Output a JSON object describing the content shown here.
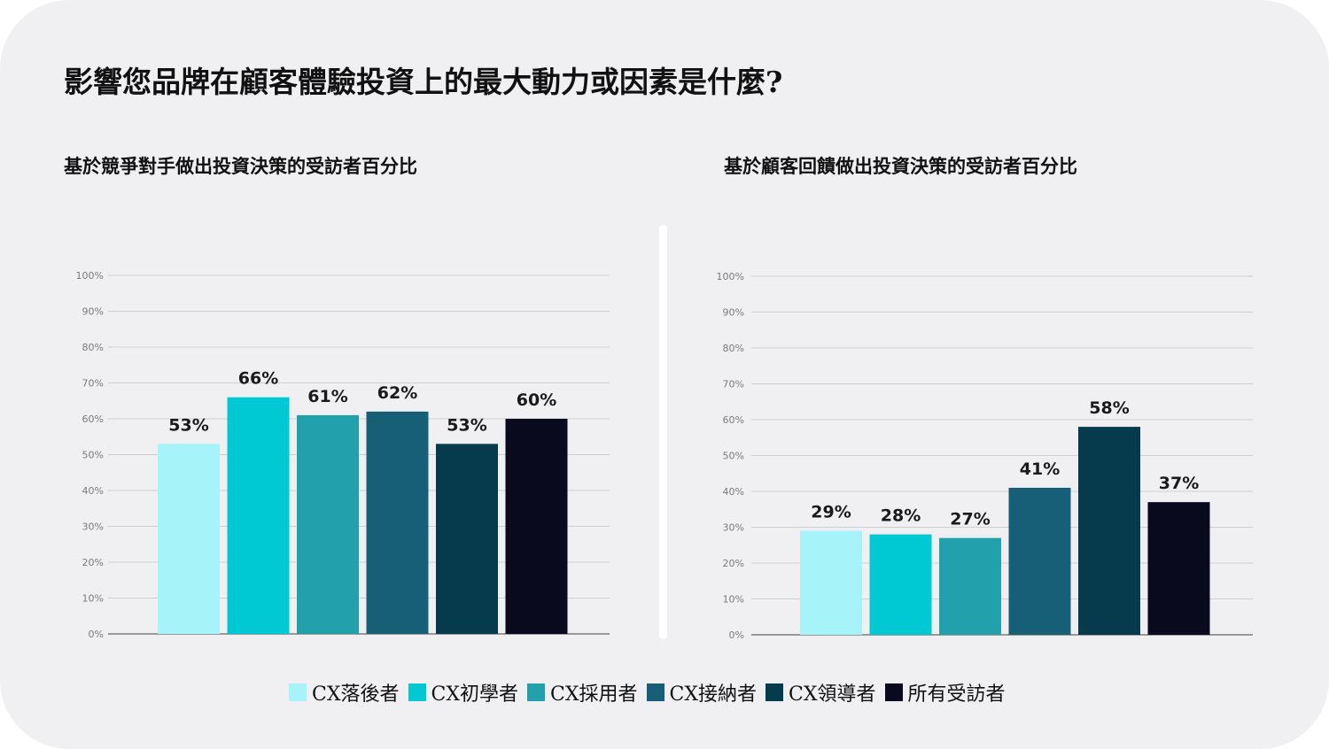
{
  "title": "影響您品牌在顧客體驗投資上的最大動力或因素是什麼?",
  "chart_data": [
    {
      "type": "bar",
      "title": "基於競爭對手做出投資決策的受訪者百分比",
      "categories": [
        "CX落後者",
        "CX初學者",
        "CX採用者",
        "CX接納者",
        "CX領導者",
        "所有受訪者"
      ],
      "values": [
        53,
        66,
        61,
        62,
        53,
        60
      ],
      "value_labels": [
        "53%",
        "66%",
        "61%",
        "62%",
        "53%",
        "60%"
      ],
      "ylim": [
        0,
        100
      ],
      "yticks": [
        "0%",
        "10%",
        "20%",
        "30%",
        "40%",
        "50%",
        "60%",
        "70%",
        "80%",
        "90%",
        "100%"
      ],
      "grid": true
    },
    {
      "type": "bar",
      "title": "基於顧客回饋做出投資決策的受訪者百分比",
      "categories": [
        "CX落後者",
        "CX初學者",
        "CX採用者",
        "CX接納者",
        "CX領導者",
        "所有受訪者"
      ],
      "values": [
        29,
        28,
        27,
        41,
        58,
        37
      ],
      "value_labels": [
        "29%",
        "28%",
        "27%",
        "41%",
        "58%",
        "37%"
      ],
      "ylim": [
        0,
        100
      ],
      "yticks": [
        "0%",
        "10%",
        "20%",
        "30%",
        "40%",
        "50%",
        "60%",
        "70%",
        "80%",
        "90%",
        "100%"
      ],
      "grid": true
    }
  ],
  "legend": {
    "placement": "bottom-center",
    "items": [
      {
        "label": "CX落後者",
        "color": "#a6f3fa"
      },
      {
        "label": "CX初學者",
        "color": "#00c9d3"
      },
      {
        "label": "CX採用者",
        "color": "#22a1ad"
      },
      {
        "label": "CX接納者",
        "color": "#175f77"
      },
      {
        "label": "CX領導者",
        "color": "#053b4c"
      },
      {
        "label": "所有受訪者",
        "color": "#090a1d"
      }
    ]
  }
}
